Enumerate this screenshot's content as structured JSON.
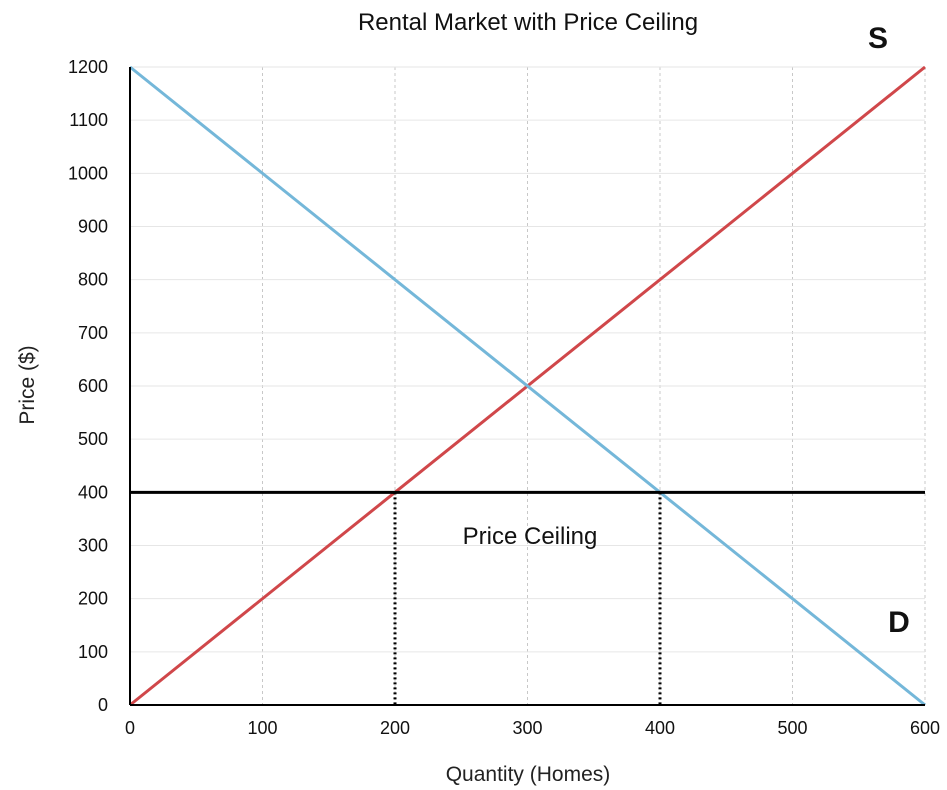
{
  "chart_data": {
    "type": "line",
    "title": "Rental Market with Price Ceiling",
    "xlabel": "Quantity (Homes)",
    "ylabel": "Price ($)",
    "xlim": [
      0,
      600
    ],
    "ylim": [
      0,
      1200
    ],
    "x_ticks": [
      0,
      100,
      200,
      300,
      400,
      500,
      600
    ],
    "y_ticks": [
      0,
      100,
      200,
      300,
      400,
      500,
      600,
      700,
      800,
      900,
      1000,
      1100,
      1200
    ],
    "grid": {
      "x": "dotted",
      "y": "solid-light"
    },
    "series": [
      {
        "name": "S",
        "color": "#d0474a",
        "x": [
          0,
          600
        ],
        "y": [
          0,
          1200
        ]
      },
      {
        "name": "D",
        "color": "#74b7d9",
        "x": [
          0,
          600
        ],
        "y": [
          1200,
          0
        ]
      }
    ],
    "price_ceiling": {
      "label": "Price Ceiling",
      "y": 400,
      "color": "#000000"
    },
    "marker_lines": [
      {
        "x": 200,
        "y_from": 0,
        "y_to": 400
      },
      {
        "x": 400,
        "y_from": 0,
        "y_to": 400
      }
    ]
  }
}
